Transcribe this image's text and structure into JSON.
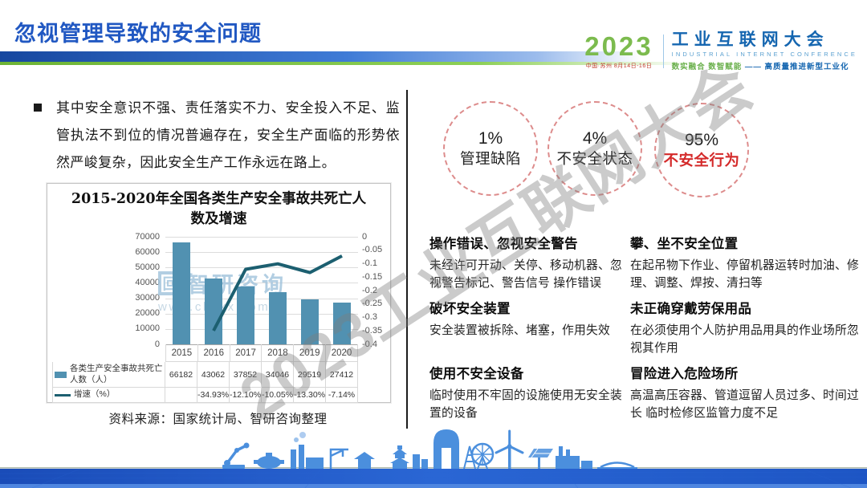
{
  "slide": {
    "title": "忽视管理导致的安全问题",
    "logo": {
      "year": "2023",
      "venue": "中国·苏州  8月14日-16日",
      "name_cn": "工业互联网大会",
      "name_en": "INDUSTRIAL INTERNET CONFERENCE",
      "slogan_green": "数实融合  数智赋能 ",
      "slogan_blue": "—— 高质量推进新型工业化"
    }
  },
  "left": {
    "bullet_text": "其中安全意识不强、责任落实不力、安全投入不足、监管执法不到位的情况普遍存在，安全生产面临的形势依然严峻复杂，因此安全生产工作永远在路上。",
    "chart_watermark": {
      "logo_glyph": "回",
      "logo_text": "智研咨询",
      "url": "www.chyxx.com"
    },
    "source_note": "资料来源：国家统计局、智研咨询整理"
  },
  "chart_data": {
    "type": "bar",
    "title": "2015-2020年全国各类生产安全事故共死亡人数及增速",
    "categories": [
      "2015",
      "2016",
      "2017",
      "2018",
      "2019",
      "2020"
    ],
    "series": [
      {
        "name": "各类生产安全事故共死亡人数（人）",
        "type": "bar",
        "axis": "left",
        "values": [
          66182,
          43062,
          37852,
          34046,
          29519,
          27412
        ]
      },
      {
        "name": "增速（%）",
        "type": "line",
        "axis": "right",
        "values": [
          null,
          -34.93,
          -12.1,
          -10.05,
          -13.3,
          -7.14
        ]
      }
    ],
    "left_axis": {
      "ticks": [
        "70000",
        "60000",
        "50000",
        "40000",
        "30000",
        "20000",
        "10000",
        "0"
      ],
      "min": 0,
      "max": 70000
    },
    "right_axis": {
      "ticks": [
        "0",
        "-0.05",
        "-0.1",
        "-0.15",
        "-0.2",
        "-0.25",
        "-0.3",
        "-0.35",
        "-0.4"
      ],
      "min": -0.4,
      "max": 0
    },
    "table_rows": [
      {
        "swatch": "bar",
        "label": "各类生产安全事故共死亡人数（人）",
        "values": [
          "66182",
          "43062",
          "37852",
          "34046",
          "29519",
          "27412"
        ]
      },
      {
        "swatch": "line",
        "label": "增速（%）",
        "values": [
          "",
          "-34.93%",
          "-12.10%",
          "-10.05%",
          "-13.30%",
          "-7.14%"
        ]
      }
    ],
    "grid": true,
    "legend_position": "table-left"
  },
  "right": {
    "circles": [
      {
        "percent": "1%",
        "label": "管理缺陷",
        "label_color": "#222222",
        "emphasis": false
      },
      {
        "percent": "4%",
        "label": "不安全状态",
        "label_color": "#222222",
        "emphasis": false
      },
      {
        "percent": "95%",
        "label": "不安全行为",
        "label_color": "#d42a2a",
        "emphasis": true
      }
    ],
    "columns": [
      {
        "items": [
          {
            "title": "操作错误、忽视安全警告",
            "body": "未经许可开动、关停、移动机器、忽视警告标记、警告信号 操作错误"
          },
          {
            "title": "破坏安全装置",
            "body": "安全装置被拆除、堵塞，作用失效"
          },
          {
            "title": "使用不安全设备",
            "body": "临时使用不牢固的设施使用无安全装置的设备"
          }
        ]
      },
      {
        "items": [
          {
            "title": "攀、坐不安全位置",
            "body": "在起吊物下作业、停留机器运转时加油、修理、调整、焊按、清扫等"
          },
          {
            "title": "未正确穿戴劳保用品",
            "body": "在必须使用个人防护用品用具的作业场所忽视其作用"
          },
          {
            "title": "冒险进入危险场所",
            "body": "高温高压容器、管道逗留人员过多、时间过长 临时检修区监管力度不足"
          }
        ]
      }
    ]
  },
  "watermark": {
    "text": "2023工业互联网大会"
  },
  "colors": {
    "title_blue": "#2158c2",
    "bar": "#5191b1",
    "line": "#1c5f70",
    "circle_dash": "#dd8c8c",
    "alert_red": "#d42a2a",
    "logo_green": "#7cbb4e",
    "logo_blue": "#1566b0",
    "footer_blue": "#1d55c4"
  }
}
